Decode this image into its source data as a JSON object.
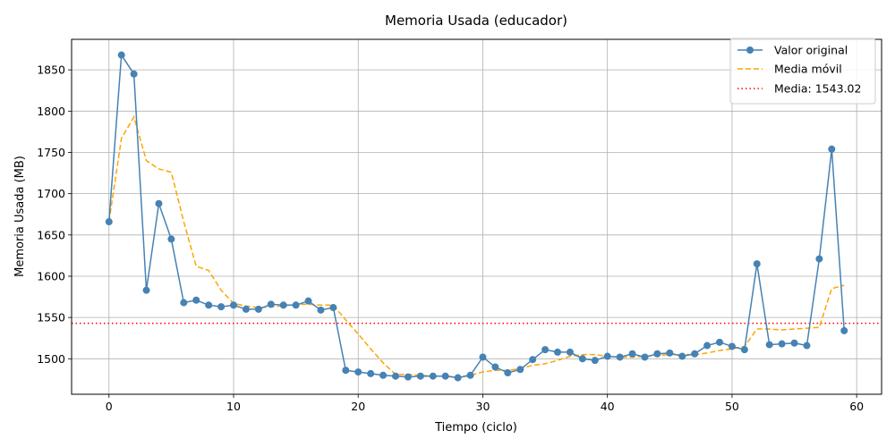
{
  "chart_data": {
    "type": "line",
    "title": "Memoria Usada (educador)",
    "xlabel": "Tiempo (ciclo)",
    "ylabel": "Memoria Usada (MB)",
    "xlim": [
      -3,
      62
    ],
    "ylim": [
      1457,
      1887
    ],
    "xticks": [
      0,
      10,
      20,
      30,
      40,
      50,
      60
    ],
    "yticks": [
      1500,
      1550,
      1600,
      1650,
      1700,
      1750,
      1800,
      1850
    ],
    "grid": true,
    "legend_position": "top-right",
    "series": [
      {
        "name": "Valor original",
        "style": "line-marker",
        "color": "#4682b4",
        "x": [
          0,
          1,
          2,
          3,
          4,
          5,
          6,
          7,
          8,
          9,
          10,
          11,
          12,
          13,
          14,
          15,
          16,
          17,
          18,
          19,
          20,
          21,
          22,
          23,
          24,
          25,
          26,
          27,
          28,
          29,
          30,
          31,
          32,
          33,
          34,
          35,
          36,
          37,
          38,
          39,
          40,
          41,
          42,
          43,
          44,
          45,
          46,
          47,
          48,
          49,
          50,
          51,
          52,
          53,
          54,
          55,
          56,
          57,
          58,
          59
        ],
        "values": [
          1666,
          1868,
          1845,
          1583,
          1688,
          1645,
          1568,
          1571,
          1565,
          1563,
          1565,
          1560,
          1560,
          1566,
          1565,
          1565,
          1570,
          1559,
          1562,
          1486,
          1484,
          1482,
          1480,
          1479,
          1478,
          1479,
          1479,
          1479,
          1477,
          1480,
          1502,
          1490,
          1483,
          1487,
          1499,
          1511,
          1508,
          1508,
          1500,
          1498,
          1503,
          1502,
          1506,
          1502,
          1506,
          1507,
          1503,
          1506,
          1516,
          1520,
          1515,
          1511,
          1615,
          1517,
          1518,
          1519,
          1516,
          1621,
          1754,
          1534
        ]
      },
      {
        "name": "Media móvil",
        "style": "dashed",
        "color": "#ffa500",
        "x": [
          0,
          1,
          2,
          3,
          4,
          5,
          6,
          7,
          8,
          9,
          10,
          11,
          12,
          13,
          14,
          15,
          16,
          17,
          18,
          19,
          20,
          21,
          22,
          23,
          24,
          25,
          26,
          27,
          28,
          29,
          30,
          31,
          32,
          33,
          34,
          35,
          36,
          37,
          38,
          39,
          40,
          41,
          42,
          43,
          44,
          45,
          46,
          47,
          48,
          49,
          50,
          51,
          52,
          53,
          54,
          55,
          56,
          57,
          58,
          59
        ],
        "values": [
          1666,
          1767,
          1793,
          1740,
          1730,
          1726,
          1666,
          1612,
          1607,
          1583,
          1567,
          1564,
          1562,
          1563,
          1564,
          1566,
          1566,
          1565,
          1565,
          1547,
          1530,
          1512,
          1495,
          1481,
          1481,
          1480,
          1479,
          1479,
          1478,
          1480,
          1484,
          1486,
          1486,
          1488,
          1492,
          1494,
          1498,
          1503,
          1505,
          1505,
          1503,
          1502,
          1502,
          1503,
          1504,
          1505,
          1505,
          1505,
          1507,
          1510,
          1512,
          1515,
          1536,
          1536,
          1535,
          1536,
          1537,
          1538,
          1585,
          1589
        ]
      },
      {
        "name": "Media: 1543.02",
        "style": "hline-dotted",
        "color": "#ff0000",
        "value": 1543.02
      }
    ]
  }
}
